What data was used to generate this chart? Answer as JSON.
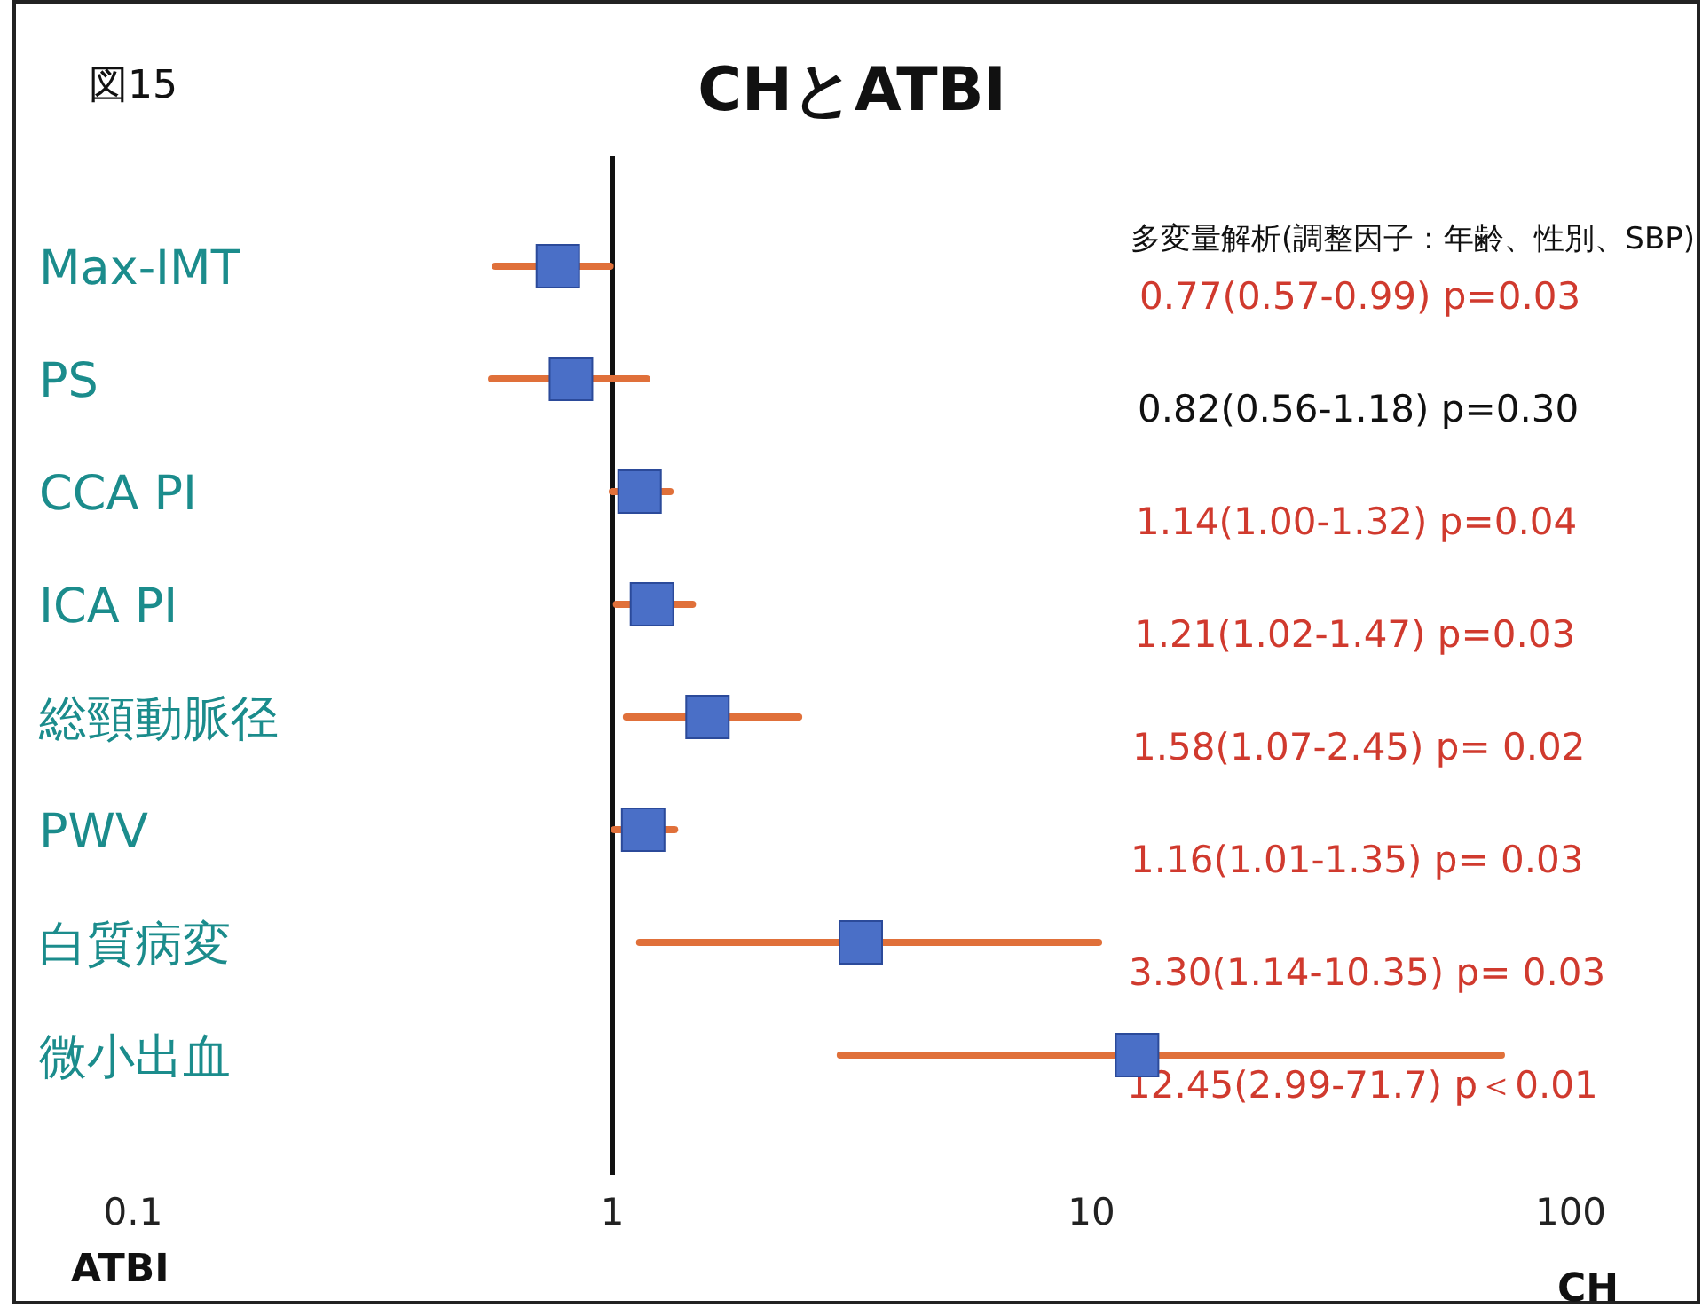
{
  "chart_data": {
    "type": "scatter",
    "orientation": "horizontal",
    "title": "CHとATBI",
    "annotations": [
      "図15",
      "多変量解析(調整因子：年齢、性別、SBP)",
      "ATBI",
      "CH",
      "0.77(0.57-0.99)  p=0.03",
      "0.82(0.56-1.18) p=0.30",
      "1.14(1.00-1.32)  p=0.04",
      "1.21(1.02-1.47)  p=0.03",
      "1.58(1.07-2.45)  p= 0.02",
      "1.16(1.01-1.35)  p= 0.03",
      "3.30(1.14-10.35)  p= 0.03",
      "12.45(2.99-71.7)  p＜0.01"
    ],
    "categories": [
      "Max-IMT",
      "PS",
      "CCA PI",
      "ICA PI",
      "総頸動脈径",
      "PWV",
      "白質病変",
      "微小出血"
    ],
    "values": [
      0.77,
      0.82,
      1.14,
      1.21,
      1.58,
      1.16,
      3.3,
      12.45
    ],
    "errors": [
      [
        0.57,
        0.99
      ],
      [
        0.56,
        1.18
      ],
      [
        1.0,
        1.32
      ],
      [
        1.02,
        1.47
      ],
      [
        1.07,
        2.45
      ],
      [
        1.01,
        1.35
      ],
      [
        1.14,
        10.35
      ],
      [
        2.99,
        71.7
      ]
    ],
    "color": "#4a6fc7",
    "marker": "square",
    "log": "x",
    "xlim": [
      0.1,
      100
    ],
    "xticks": [
      0.1,
      1,
      10,
      100
    ],
    "ref_lines": [
      {
        "axis": "x",
        "value": 1
      }
    ],
    "grid": false
  }
}
